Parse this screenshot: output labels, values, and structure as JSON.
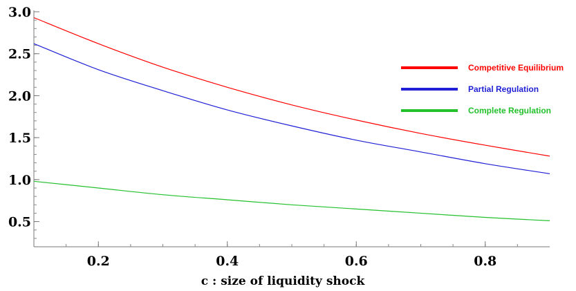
{
  "chart_data": {
    "type": "line",
    "title": "",
    "xlabel": "c : size of liquidity shock",
    "ylabel": "",
    "xlim": [
      0.1,
      0.9
    ],
    "ylim": [
      0.2,
      3.0
    ],
    "x_ticks": [
      {
        "value": 0.2,
        "label": "0.2"
      },
      {
        "value": 0.4,
        "label": "0.4"
      },
      {
        "value": 0.6,
        "label": "0.6"
      },
      {
        "value": 0.8,
        "label": "0.8"
      }
    ],
    "y_ticks": [
      {
        "value": 0.5,
        "label": "0.5"
      },
      {
        "value": 1.0,
        "label": "1.0"
      },
      {
        "value": 1.5,
        "label": "1.5"
      },
      {
        "value": 2.0,
        "label": "2.0"
      },
      {
        "value": 2.5,
        "label": "2.5"
      },
      {
        "value": 3.0,
        "label": "3.0"
      }
    ],
    "x_minor_step": 0.05,
    "y_minor_step": 0.1,
    "grid": false,
    "legend_position": "right",
    "x": [
      0.1,
      0.2,
      0.3,
      0.4,
      0.5,
      0.6,
      0.7,
      0.8,
      0.9
    ],
    "series": [
      {
        "name": "Competitive Equilibrium",
        "color": "#ff0000",
        "values": [
          2.93,
          2.62,
          2.34,
          2.1,
          1.89,
          1.71,
          1.55,
          1.41,
          1.28
        ]
      },
      {
        "name": "Partial Regulation",
        "color": "#1f1fd6",
        "values": [
          2.62,
          2.31,
          2.06,
          1.83,
          1.64,
          1.47,
          1.33,
          1.19,
          1.07
        ]
      },
      {
        "name": "Complete Regulation",
        "color": "#22c02a",
        "values": [
          0.98,
          0.9,
          0.82,
          0.76,
          0.7,
          0.65,
          0.6,
          0.55,
          0.51
        ]
      }
    ]
  }
}
